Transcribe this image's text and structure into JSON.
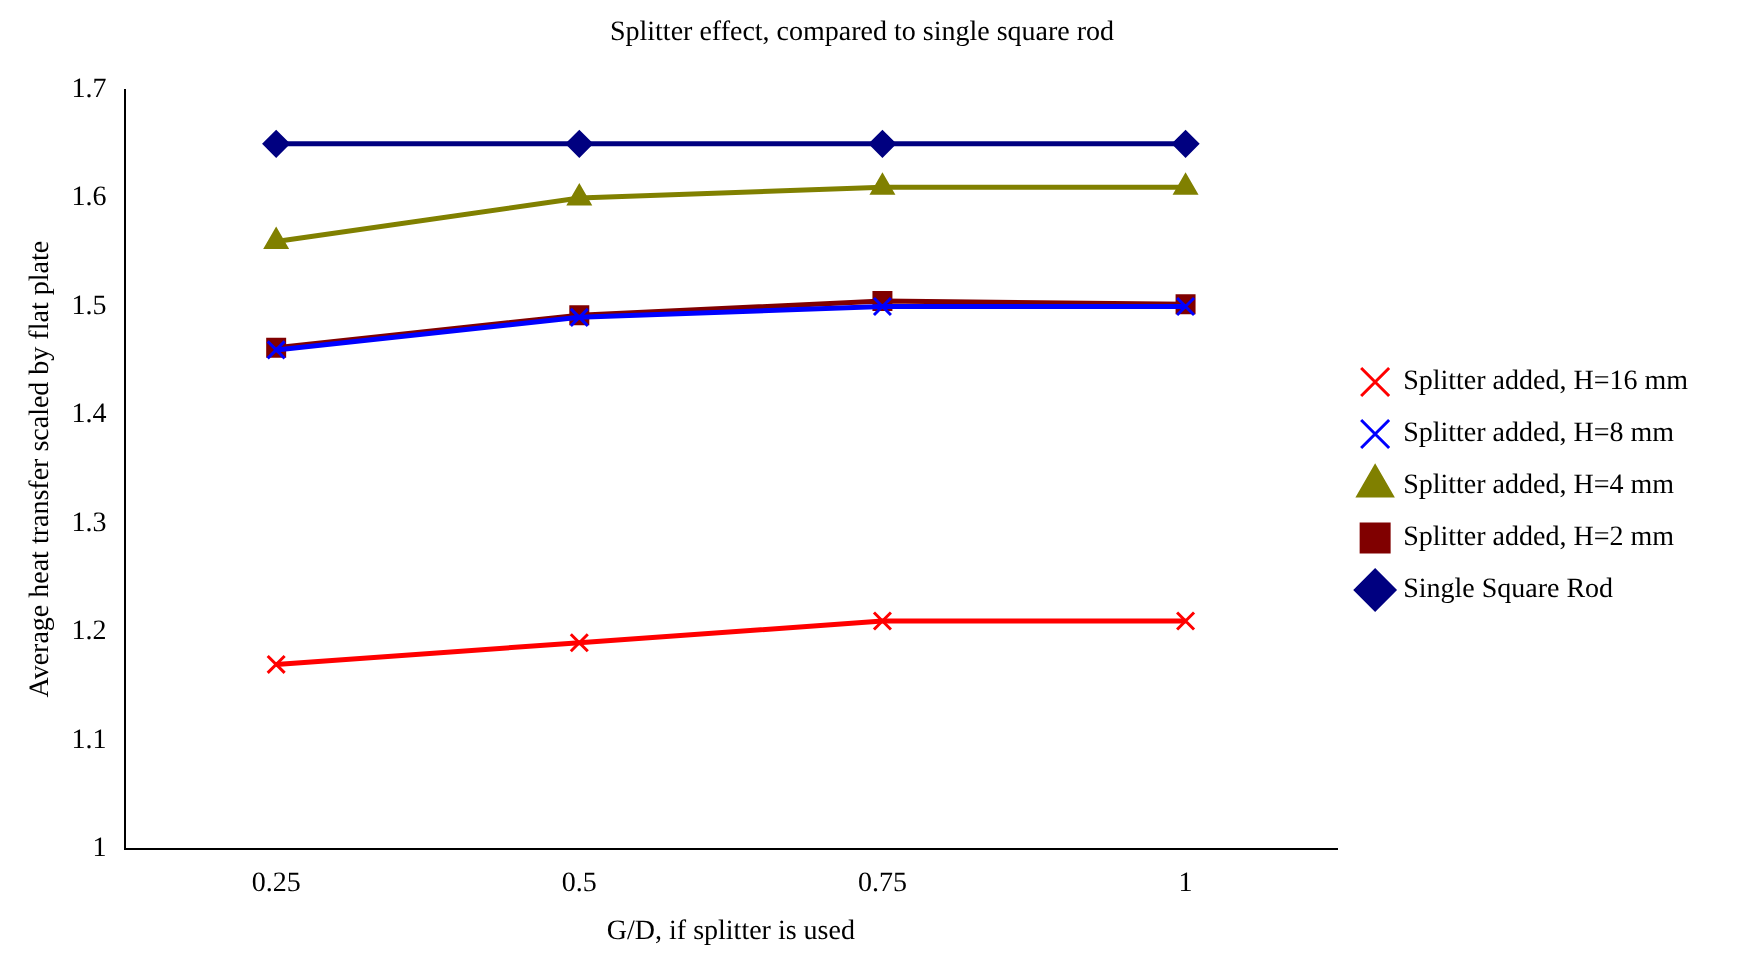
{
  "chart_data": {
    "type": "line",
    "title": "Splitter effect, compared to single square rod",
    "xlabel": "G/D, if splitter is used",
    "ylabel": "Average heat transfer scaled by flat plate",
    "categories": [
      "0.25",
      "0.5",
      "0.75",
      "1"
    ],
    "series": [
      {
        "name": "Single Square Rod",
        "color": "#000080",
        "marker": "diamond",
        "values": [
          1.65,
          1.65,
          1.65,
          1.65
        ]
      },
      {
        "name": "Splitter added, H=2 mm",
        "color": "#800000",
        "marker": "square",
        "values": [
          1.462,
          1.492,
          1.505,
          1.502
        ]
      },
      {
        "name": "Splitter added, H=4 mm",
        "color": "#808000",
        "marker": "triangle",
        "values": [
          1.56,
          1.6,
          1.61,
          1.61
        ]
      },
      {
        "name": "Splitter added, H=8 mm",
        "color": "#0000ff",
        "marker": "cross",
        "values": [
          1.46,
          1.49,
          1.5,
          1.5
        ]
      },
      {
        "name": "Splitter added, H=16 mm",
        "color": "#ff0000",
        "marker": "cross",
        "values": [
          1.17,
          1.19,
          1.21,
          1.21
        ]
      }
    ],
    "ylim": [
      1,
      1.7
    ],
    "yticks": [
      1,
      1.1,
      1.2,
      1.3,
      1.4,
      1.5,
      1.6,
      1.7
    ],
    "grid": false,
    "legend": "right"
  }
}
